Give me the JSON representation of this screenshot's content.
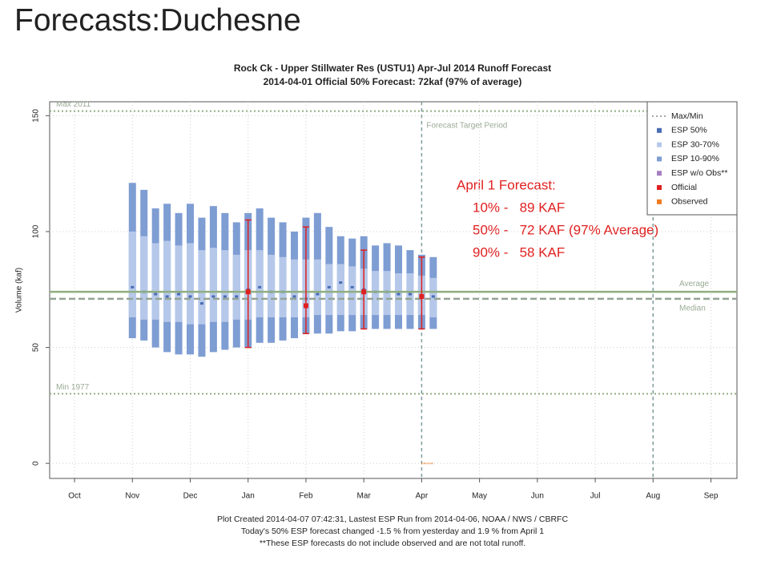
{
  "slide_title": "Forecasts:Duchesne",
  "chart_data": {
    "type": "esp",
    "title": [
      "Rock Ck - Upper Stillwater Res (USTU1) Apr-Jul 2014 Runoff Forecast",
      "2014-04-01 Official 50% Forecast: 72kaf (97% of average)"
    ],
    "ylabel": "Volume (kaf)",
    "xlim": [
      -0.43,
      11.45
    ],
    "xticks": [
      {
        "value": 0,
        "label": "Oct"
      },
      {
        "value": 1,
        "label": "Nov"
      },
      {
        "value": 2,
        "label": "Dec"
      },
      {
        "value": 3,
        "label": "Jan"
      },
      {
        "value": 4,
        "label": "Feb"
      },
      {
        "value": 5,
        "label": "Mar"
      },
      {
        "value": 6,
        "label": "Apr"
      },
      {
        "value": 7,
        "label": "May"
      },
      {
        "value": 8,
        "label": "Jun"
      },
      {
        "value": 9,
        "label": "Jul"
      },
      {
        "value": 10,
        "label": "Aug"
      },
      {
        "value": 11,
        "label": "Sep"
      }
    ],
    "ylim": [
      -6.5,
      156
    ],
    "yticks": [
      0,
      50,
      100,
      150
    ],
    "grid": true,
    "legend": "top right",
    "x": [
      1.0,
      1.2,
      1.4,
      1.6,
      1.8,
      2.0,
      2.2,
      2.4,
      2.6,
      2.8,
      3.0,
      3.2,
      3.4,
      3.6,
      3.8,
      4.0,
      4.2,
      4.4,
      4.6,
      4.8,
      5.0,
      5.2,
      5.4,
      5.6,
      5.8,
      6.0,
      6.2
    ],
    "series": [
      {
        "name": "Max/Min",
        "color": "#8c8c8c",
        "style": "dotted"
      },
      {
        "name": "ESP 50%",
        "color": "#4a6db4",
        "values": [
          76,
          74,
          73,
          72,
          73,
          72,
          69,
          72,
          72,
          72,
          75,
          76,
          74,
          74,
          72,
          71,
          73,
          76,
          78,
          76,
          75,
          74,
          74,
          73,
          73,
          72,
          72
        ]
      },
      {
        "name": "ESP 30-70%",
        "color": "#b6c8ea",
        "low": [
          63,
          62,
          62,
          61,
          61,
          60,
          60,
          61,
          61,
          62,
          62,
          63,
          63,
          63,
          63,
          63,
          64,
          64,
          64,
          64,
          64,
          64,
          64,
          64,
          64,
          64,
          63
        ],
        "high": [
          100,
          98,
          95,
          96,
          94,
          95,
          92,
          93,
          92,
          90,
          92,
          92,
          90,
          89,
          88,
          88,
          88,
          86,
          86,
          85,
          84,
          83,
          83,
          82,
          82,
          81,
          80
        ]
      },
      {
        "name": "ESP 10-90%",
        "color": "#7e9dd3",
        "low": [
          54,
          53,
          50,
          48,
          47,
          47,
          46,
          48,
          49,
          50,
          50,
          52,
          52,
          53,
          54,
          56,
          56,
          56,
          57,
          57,
          58,
          58,
          58,
          58,
          58,
          58,
          58
        ],
        "high": [
          121,
          118,
          110,
          112,
          108,
          112,
          106,
          111,
          108,
          104,
          108,
          110,
          106,
          104,
          100,
          106,
          108,
          102,
          98,
          97,
          98,
          94,
          95,
          94,
          92,
          90,
          89
        ]
      },
      {
        "name": "ESP w/o Obs**",
        "color": "#a77fc2"
      },
      {
        "name": "Official",
        "color": "#e02020",
        "x": [
          3,
          4,
          5,
          6
        ],
        "values": [
          74,
          68,
          74,
          72
        ],
        "low": [
          50,
          56,
          58,
          58
        ],
        "high": [
          105,
          102,
          92,
          89
        ]
      },
      {
        "name": "Observed",
        "color": "#f07a20",
        "x": [
          6.0,
          6.2
        ],
        "values": [
          0,
          0
        ]
      }
    ],
    "reference_lines": [
      {
        "label": "Max 2011",
        "value": 152,
        "color": "#8fae80",
        "style": "dotted",
        "label_side": "left"
      },
      {
        "label": "Average",
        "value": 74,
        "color": "#8fae80",
        "style": "solid",
        "label_side": "right"
      },
      {
        "label": "Median",
        "value": 71,
        "color": "#94a394",
        "style": "dashed",
        "label_side": "right"
      },
      {
        "label": "Min 1977",
        "value": 30,
        "color": "#8fae80",
        "style": "dotted",
        "label_side": "left"
      }
    ],
    "vlines": {
      "x": [
        6,
        10
      ],
      "color": "#7f9d9d",
      "label": "Forecast Target Period"
    },
    "annotation": [
      "April 1 Forecast:",
      "10% -   89 KAF",
      "50% -   72 KAF (97% Average)",
      "90% -   58 KAF"
    ],
    "footer": [
      "Plot Created 2014-04-07 07:42:31, Lastest ESP Run from 2014-04-06, NOAA / NWS / CBRFC",
      "Today's 50% ESP forecast changed  -1.5 % from yesterday and  1.9 % from  April 1",
      "**These ESP forecasts do not include observed and are not total runoff."
    ]
  }
}
